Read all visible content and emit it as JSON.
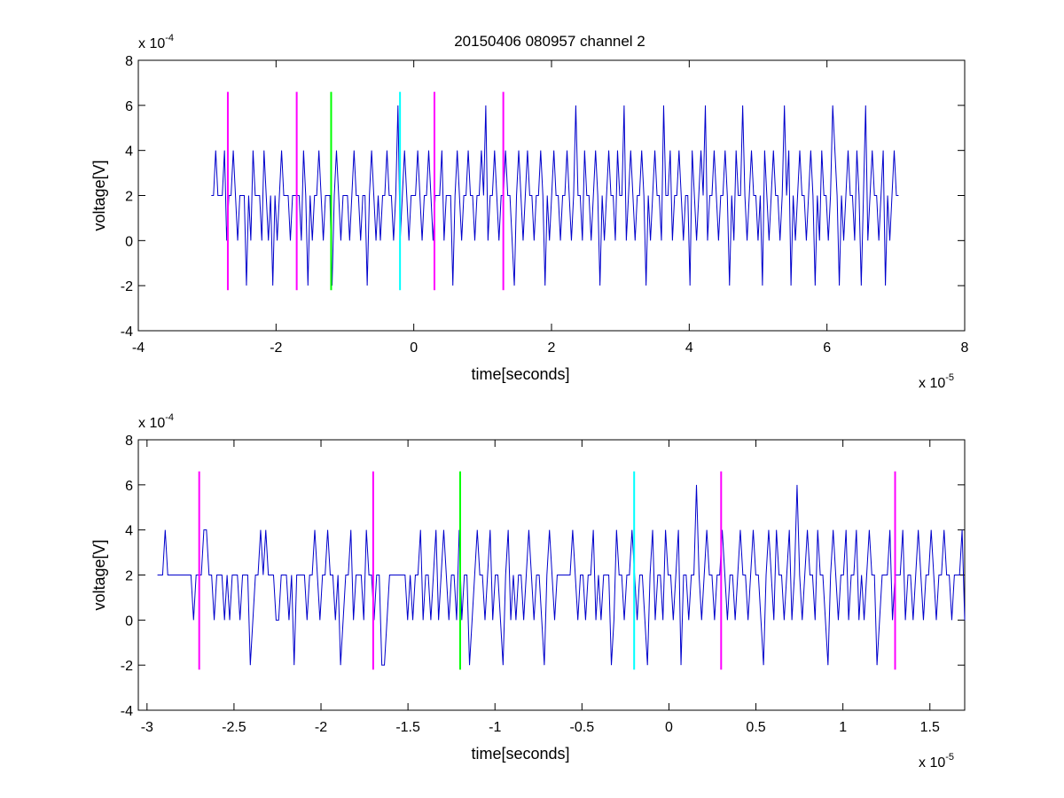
{
  "figure_title": "20150406 080957 channel 2",
  "colors": {
    "signal": "#0000cc",
    "event_magenta": "#ff00ff",
    "event_green": "#00ff00",
    "event_cyan": "#00ffff",
    "axes": "#000000"
  },
  "chart_data": [
    {
      "type": "line",
      "title": "20150406 080957 channel 2",
      "xlabel": "time[seconds]",
      "ylabel": "voltage[V]",
      "x_multiplier_label": "x 10",
      "x_multiplier_exponent": "-5",
      "y_multiplier_label": "x 10",
      "y_multiplier_exponent": "-4",
      "xlim": [
        -4,
        8
      ],
      "ylim": [
        -4,
        8
      ],
      "xticks": [
        -4,
        -2,
        0,
        2,
        4,
        6,
        8
      ],
      "xtick_labels": [
        "-4",
        "-2",
        "0",
        "2",
        "4",
        "6",
        "8"
      ],
      "yticks": [
        -4,
        -2,
        0,
        2,
        4,
        6,
        8
      ],
      "ytick_labels": [
        "-4",
        "-2",
        "0",
        "2",
        "4",
        "6",
        "8"
      ],
      "grid": false,
      "series": [
        {
          "color": "#0000cc",
          "x_start": -2.94,
          "x_end": 7.04,
          "sample_count": 1000,
          "values": [
            2,
            2,
            4,
            2,
            2,
            2,
            4,
            0,
            2,
            2,
            4,
            2,
            0,
            2,
            2,
            2,
            -2,
            2,
            0,
            4,
            2,
            2,
            2,
            0,
            4,
            2,
            0,
            2,
            -2,
            2,
            0,
            2,
            4,
            2,
            2,
            2,
            0,
            2,
            2,
            2,
            2,
            0,
            4,
            2,
            -2,
            2,
            0,
            2,
            2,
            4,
            2,
            0,
            2,
            2,
            2,
            -2,
            2,
            4,
            2,
            0,
            2,
            2,
            2,
            0,
            2,
            4,
            2,
            2,
            0,
            2,
            2,
            -2,
            2,
            4,
            2,
            0,
            2,
            0,
            2,
            2,
            4,
            2,
            2,
            0,
            2,
            6,
            0,
            2,
            4,
            2,
            0,
            2,
            2,
            2,
            4,
            2,
            0,
            2,
            2,
            4,
            2,
            0,
            2,
            2,
            2,
            4,
            0,
            2,
            2,
            2,
            -2,
            2,
            4,
            2,
            0,
            2,
            2,
            4,
            2,
            2,
            0,
            2,
            2,
            4,
            2,
            6,
            0,
            2,
            2,
            4,
            2,
            0,
            2,
            2,
            4,
            2,
            2,
            0,
            -2,
            2,
            4,
            2,
            0,
            2,
            4,
            2,
            2,
            0,
            2,
            2,
            4,
            2,
            -2,
            2,
            0,
            2,
            4,
            2,
            2,
            0,
            2,
            2,
            4,
            2,
            0,
            2,
            6,
            2,
            2,
            0,
            4,
            2,
            2,
            0,
            2,
            4,
            2,
            -2,
            2,
            0,
            2,
            4,
            2,
            2,
            0,
            4,
            2,
            2,
            6,
            0,
            2,
            4,
            2,
            0,
            2,
            2,
            4,
            2,
            -2,
            2,
            0,
            2,
            4,
            2,
            2,
            0,
            6,
            2,
            2,
            4,
            0,
            2,
            2,
            4,
            2,
            0,
            2,
            2,
            -2,
            4,
            2,
            0,
            2,
            4,
            2,
            6,
            0,
            2,
            2,
            4,
            2,
            0,
            2,
            2,
            4,
            2,
            -2,
            2,
            0,
            4,
            2,
            2,
            6,
            2,
            0,
            2,
            4,
            2,
            2,
            0,
            2,
            -2,
            4,
            2,
            0,
            2,
            4,
            2,
            2,
            0,
            2,
            6,
            2,
            4,
            -2,
            2,
            0,
            2,
            4,
            2,
            2,
            0,
            2,
            4,
            2,
            -2,
            2,
            0,
            4,
            2,
            2,
            0,
            2,
            6,
            4,
            2,
            -2,
            2,
            0,
            2,
            4,
            2,
            2,
            0,
            4,
            2,
            -2,
            2,
            6,
            0,
            2,
            4,
            2,
            2,
            0,
            2,
            4,
            -2,
            2,
            0,
            2,
            4,
            2,
            2
          ],
          "sampled": true
        }
      ],
      "event_markers": [
        {
          "x": -2.7,
          "color": "#ff00ff",
          "y_range": [
            -2.2,
            6.6
          ]
        },
        {
          "x": -1.7,
          "color": "#ff00ff",
          "y_range": [
            -2.2,
            6.6
          ]
        },
        {
          "x": -1.2,
          "color": "#00ff00",
          "y_range": [
            -2.2,
            6.6
          ]
        },
        {
          "x": -0.2,
          "color": "#00ffff",
          "y_range": [
            -2.2,
            6.6
          ]
        },
        {
          "x": 0.3,
          "color": "#ff00ff",
          "y_range": [
            -2.2,
            6.6
          ]
        },
        {
          "x": 1.3,
          "color": "#ff00ff",
          "y_range": [
            -2.2,
            6.6
          ]
        }
      ]
    },
    {
      "type": "line",
      "title": "",
      "xlabel": "time[seconds]",
      "ylabel": "voltage[V]",
      "x_multiplier_label": "x 10",
      "x_multiplier_exponent": "-5",
      "y_multiplier_label": "x 10",
      "y_multiplier_exponent": "-4",
      "xlim": [
        -3.05,
        1.7
      ],
      "ylim": [
        -4,
        8
      ],
      "xticks": [
        -3,
        -2.5,
        -2,
        -1.5,
        -1,
        -0.5,
        0,
        0.5,
        1,
        1.5
      ],
      "xtick_labels": [
        "-3",
        "-2.5",
        "-2",
        "-1.5",
        "-1",
        "-0.5",
        "0",
        "0.5",
        "1",
        "1.5"
      ],
      "yticks": [
        -4,
        -2,
        0,
        2,
        4,
        6,
        8
      ],
      "ytick_labels": [
        "-4",
        "-2",
        "0",
        "2",
        "4",
        "6",
        "8"
      ],
      "grid": false,
      "series": [
        {
          "color": "#0000cc",
          "x_start": -2.94,
          "x_end": 1.7,
          "sample_count": 464,
          "values": [
            2,
            2,
            2,
            4,
            2,
            2,
            2,
            2,
            2,
            2,
            2,
            2,
            2,
            2,
            0,
            2,
            2,
            2,
            4,
            4,
            2,
            2,
            0,
            2,
            2,
            2,
            0,
            2,
            0,
            2,
            2,
            2,
            0,
            2,
            2,
            2,
            -2,
            0,
            2,
            2,
            4,
            2,
            4,
            2,
            2,
            2,
            0,
            0,
            2,
            2,
            2,
            0,
            2,
            -2,
            2,
            2,
            2,
            2,
            0,
            2,
            2,
            4,
            2,
            0,
            2,
            2,
            4,
            2,
            2,
            0,
            2,
            -2,
            0,
            2,
            2,
            4,
            0,
            2,
            2,
            2,
            0,
            4,
            2,
            2,
            0,
            2,
            2,
            -2,
            -2,
            0,
            2,
            2,
            2,
            2,
            2,
            2,
            2,
            0,
            2,
            0,
            2,
            2,
            4,
            0,
            2,
            2,
            0,
            2,
            4,
            0,
            2,
            4,
            2,
            0,
            2,
            2,
            0,
            4,
            0,
            2,
            2,
            -2,
            0,
            2,
            4,
            2,
            2,
            0,
            2,
            4,
            0,
            2,
            2,
            0,
            -2,
            2,
            4,
            0,
            2,
            0,
            2,
            2,
            0,
            2,
            4,
            2,
            0,
            2,
            2,
            0,
            -2,
            2,
            4,
            2,
            0,
            2,
            2,
            2,
            2,
            2,
            2,
            4,
            2,
            0,
            2,
            2,
            0,
            2,
            2,
            4,
            0,
            2,
            0,
            2,
            2,
            2,
            -2,
            0,
            4,
            2,
            2,
            0,
            2,
            2,
            4,
            2,
            0,
            2,
            2,
            0,
            -2,
            2,
            4,
            0,
            2,
            2,
            0,
            4,
            2,
            2,
            0,
            2,
            4,
            -2,
            2,
            2,
            0,
            2,
            2,
            6,
            2,
            0,
            2,
            4,
            2,
            2,
            0,
            2,
            2,
            4,
            2,
            0,
            2,
            2,
            0,
            2,
            4,
            2,
            2,
            0,
            2,
            4,
            2,
            2,
            0,
            -2,
            2,
            4,
            2,
            0,
            4,
            2,
            2,
            0,
            2,
            4,
            0,
            2,
            6,
            2,
            0,
            2,
            4,
            2,
            2,
            0,
            4,
            2,
            2,
            0,
            -2,
            2,
            4,
            2,
            0,
            2,
            2,
            4,
            0,
            2,
            2,
            4,
            0,
            2,
            0,
            2,
            4,
            2,
            2,
            -2,
            0,
            2,
            2,
            2,
            4,
            0,
            2,
            2,
            2,
            4,
            0,
            2,
            2,
            0,
            2,
            4,
            2,
            0,
            2,
            2,
            4,
            2,
            0,
            2,
            2,
            4,
            2,
            2,
            0,
            2,
            2,
            2,
            4,
            0
          ],
          "sampled": true
        }
      ],
      "event_markers": [
        {
          "x": -2.7,
          "color": "#ff00ff",
          "y_range": [
            -2.2,
            6.6
          ]
        },
        {
          "x": -1.7,
          "color": "#ff00ff",
          "y_range": [
            -2.2,
            6.6
          ]
        },
        {
          "x": -1.2,
          "color": "#00ff00",
          "y_range": [
            -2.2,
            6.6
          ]
        },
        {
          "x": -0.2,
          "color": "#00ffff",
          "y_range": [
            -2.2,
            6.6
          ]
        },
        {
          "x": 0.3,
          "color": "#ff00ff",
          "y_range": [
            -2.2,
            6.6
          ]
        },
        {
          "x": 1.3,
          "color": "#ff00ff",
          "y_range": [
            -2.2,
            6.6
          ]
        }
      ]
    }
  ]
}
